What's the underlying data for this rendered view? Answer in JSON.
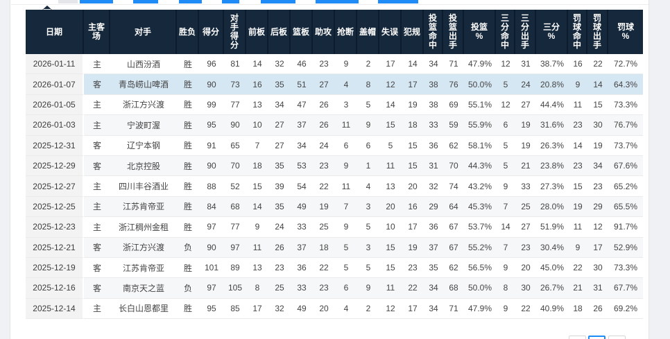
{
  "page": {
    "background": "#ffffff",
    "gutter_color": "#eff1f4",
    "accent_blue": "#1f8bf7"
  },
  "table": {
    "header_bg": "#16283c",
    "header_text_color": "#ffffff",
    "highlight_row_bg": "#d6e7f4",
    "stripe_row_bg": "#f6f7f8",
    "date_col_bg": "#f3f3f3",
    "highlighted_row_index": 1,
    "columns": [
      {
        "key": "date",
        "label": "日期"
      },
      {
        "key": "home-away",
        "label": "主客\n场"
      },
      {
        "key": "opponent",
        "label": "对手"
      },
      {
        "key": "result",
        "label": "胜负"
      },
      {
        "key": "points",
        "label": "得分"
      },
      {
        "key": "opp-points",
        "label": "对\n手\n得\n分"
      },
      {
        "key": "off-rebounds",
        "label": "前板"
      },
      {
        "key": "def-rebounds",
        "label": "后板"
      },
      {
        "key": "rebounds",
        "label": "篮板"
      },
      {
        "key": "assists",
        "label": "助攻"
      },
      {
        "key": "steals",
        "label": "抢断"
      },
      {
        "key": "blocks",
        "label": "盖帽"
      },
      {
        "key": "turnovers",
        "label": "失误"
      },
      {
        "key": "fouls",
        "label": "犯规"
      },
      {
        "key": "fg-made",
        "label": "投\n篮\n命\n中"
      },
      {
        "key": "fg-att",
        "label": "投\n篮\n出\n手"
      },
      {
        "key": "fg-pct",
        "label": "投篮\n%"
      },
      {
        "key": "three-made",
        "label": "三\n分\n命\n中"
      },
      {
        "key": "three-att",
        "label": "三\n分\n出\n手"
      },
      {
        "key": "three-pct",
        "label": "三分\n%"
      },
      {
        "key": "ft-made",
        "label": "罚\n球\n命\n中"
      },
      {
        "key": "ft-att",
        "label": "罚\n球\n出\n手"
      },
      {
        "key": "ft-pct",
        "label": "罚球\n%"
      }
    ],
    "rows": [
      [
        "2026-01-11",
        "主",
        "山西汾酒",
        "胜",
        "96",
        "81",
        "14",
        "32",
        "46",
        "23",
        "9",
        "2",
        "17",
        "14",
        "34",
        "71",
        "47.9%",
        "12",
        "31",
        "38.7%",
        "16",
        "22",
        "72.7%"
      ],
      [
        "2026-01-07",
        "客",
        "青岛崂山啤酒",
        "胜",
        "90",
        "73",
        "16",
        "35",
        "51",
        "27",
        "4",
        "8",
        "12",
        "17",
        "38",
        "76",
        "50.0%",
        "5",
        "24",
        "20.8%",
        "9",
        "14",
        "64.3%"
      ],
      [
        "2026-01-05",
        "主",
        "浙江方兴渡",
        "胜",
        "99",
        "77",
        "13",
        "34",
        "47",
        "26",
        "3",
        "5",
        "14",
        "19",
        "38",
        "69",
        "55.1%",
        "12",
        "27",
        "44.4%",
        "11",
        "15",
        "73.3%"
      ],
      [
        "2026-01-03",
        "主",
        "宁波町渥",
        "胜",
        "95",
        "90",
        "10",
        "27",
        "37",
        "26",
        "11",
        "9",
        "15",
        "18",
        "33",
        "59",
        "55.9%",
        "6",
        "19",
        "31.6%",
        "23",
        "30",
        "76.7%"
      ],
      [
        "2025-12-31",
        "客",
        "辽宁本钢",
        "胜",
        "91",
        "65",
        "7",
        "27",
        "34",
        "24",
        "6",
        "6",
        "5",
        "15",
        "36",
        "62",
        "58.1%",
        "5",
        "19",
        "26.3%",
        "14",
        "19",
        "73.7%"
      ],
      [
        "2025-12-29",
        "客",
        "北京控股",
        "胜",
        "90",
        "70",
        "18",
        "35",
        "53",
        "23",
        "9",
        "1",
        "11",
        "15",
        "31",
        "70",
        "44.3%",
        "5",
        "21",
        "23.8%",
        "23",
        "34",
        "67.6%"
      ],
      [
        "2025-12-27",
        "主",
        "四川丰谷酒业",
        "胜",
        "88",
        "52",
        "15",
        "39",
        "54",
        "22",
        "11",
        "4",
        "13",
        "20",
        "32",
        "74",
        "43.2%",
        "9",
        "33",
        "27.3%",
        "15",
        "23",
        "65.2%"
      ],
      [
        "2025-12-25",
        "主",
        "江苏肯帝亚",
        "胜",
        "84",
        "68",
        "14",
        "35",
        "49",
        "19",
        "7",
        "3",
        "20",
        "16",
        "29",
        "64",
        "45.3%",
        "7",
        "25",
        "28.0%",
        "19",
        "29",
        "65.5%"
      ],
      [
        "2025-12-23",
        "主",
        "浙江稠州金租",
        "胜",
        "97",
        "77",
        "9",
        "24",
        "33",
        "25",
        "9",
        "5",
        "10",
        "17",
        "36",
        "67",
        "53.7%",
        "14",
        "27",
        "51.9%",
        "11",
        "12",
        "91.7%"
      ],
      [
        "2025-12-21",
        "客",
        "浙江方兴渡",
        "负",
        "90",
        "97",
        "11",
        "26",
        "37",
        "18",
        "5",
        "3",
        "15",
        "19",
        "37",
        "67",
        "55.2%",
        "7",
        "23",
        "30.4%",
        "9",
        "17",
        "52.9%"
      ],
      [
        "2025-12-19",
        "客",
        "江苏肯帝亚",
        "胜",
        "101",
        "89",
        "13",
        "23",
        "36",
        "22",
        "5",
        "5",
        "15",
        "23",
        "35",
        "62",
        "56.5%",
        "9",
        "20",
        "45.0%",
        "22",
        "30",
        "73.3%"
      ],
      [
        "2025-12-16",
        "客",
        "南京天之蓝",
        "负",
        "97",
        "105",
        "8",
        "25",
        "33",
        "23",
        "6",
        "9",
        "11",
        "22",
        "34",
        "68",
        "50.0%",
        "8",
        "30",
        "26.7%",
        "21",
        "31",
        "67.7%"
      ],
      [
        "2025-12-14",
        "主",
        "长白山恩都里",
        "胜",
        "95",
        "85",
        "17",
        "32",
        "49",
        "20",
        "4",
        "2",
        "12",
        "17",
        "34",
        "71",
        "47.9%",
        "9",
        "22",
        "40.9%",
        "18",
        "26",
        "69.2%"
      ]
    ]
  }
}
